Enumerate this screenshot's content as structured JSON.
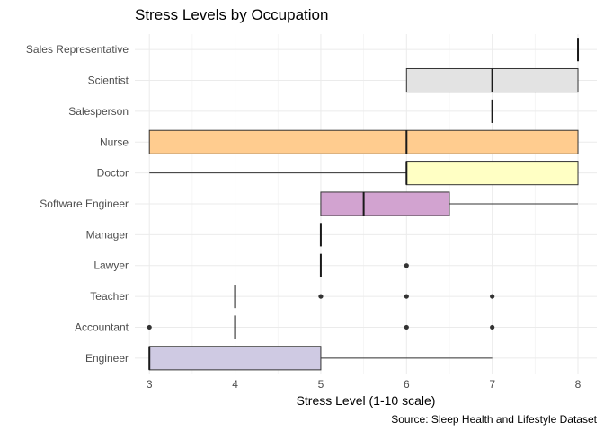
{
  "chart_data": {
    "type": "boxplot",
    "title": "Stress Levels by Occupation",
    "xlabel": "Stress Level (1-10 scale)",
    "ylabel": "",
    "caption": "Source: Sleep Health and Lifestyle Dataset",
    "xlim": [
      2.83,
      8.22
    ],
    "xticks": [
      3,
      4,
      5,
      6,
      7,
      8
    ],
    "grid": true,
    "legend": "none",
    "categories": [
      "Engineer",
      "Accountant",
      "Teacher",
      "Lawyer",
      "Manager",
      "Software Engineer",
      "Doctor",
      "Nurse",
      "Salesperson",
      "Scientist",
      "Sales Representative"
    ],
    "boxes": [
      {
        "category": "Engineer",
        "min": 3,
        "q1": 3,
        "median": 3,
        "q3": 5,
        "max": 7,
        "outliers": [],
        "fill": "#cfcae3"
      },
      {
        "category": "Accountant",
        "min": 4,
        "q1": 4,
        "median": 4,
        "q3": 4,
        "max": 4,
        "outliers": [
          3,
          6,
          7
        ],
        "fill": "#d9d9d9"
      },
      {
        "category": "Teacher",
        "min": 4,
        "q1": 4,
        "median": 4,
        "q3": 4,
        "max": 4,
        "outliers": [
          5,
          6,
          7
        ],
        "fill": "#bebada"
      },
      {
        "category": "Lawyer",
        "min": 5,
        "q1": 5,
        "median": 5,
        "q3": 5,
        "max": 5,
        "outliers": [
          6
        ],
        "fill": "#fccde5"
      },
      {
        "category": "Manager",
        "min": 5,
        "q1": 5,
        "median": 5,
        "q3": 5,
        "max": 5,
        "outliers": [],
        "fill": "#b3de69"
      },
      {
        "category": "Software Engineer",
        "min": 5,
        "q1": 5,
        "median": 5.5,
        "q3": 6.5,
        "max": 8,
        "outliers": [],
        "fill": "#d2a3d0"
      },
      {
        "category": "Doctor",
        "min": 3,
        "q1": 6,
        "median": 6,
        "q3": 8,
        "max": 8,
        "outliers": [],
        "fill": "#ffffc4"
      },
      {
        "category": "Nurse",
        "min": 3,
        "q1": 3,
        "median": 6,
        "q3": 8,
        "max": 8,
        "outliers": [],
        "fill": "#ffcc8f"
      },
      {
        "category": "Salesperson",
        "min": 7,
        "q1": 7,
        "median": 7,
        "q3": 7,
        "max": 7,
        "outliers": [],
        "fill": "#8dd3c7"
      },
      {
        "category": "Scientist",
        "min": 6,
        "q1": 6,
        "median": 7,
        "q3": 8,
        "max": 8,
        "outliers": [],
        "fill": "#e3e3e3"
      },
      {
        "category": "Sales Representative",
        "min": 8,
        "q1": 8,
        "median": 8,
        "q3": 8,
        "max": 8,
        "outliers": [],
        "fill": "#fb8072"
      }
    ]
  }
}
